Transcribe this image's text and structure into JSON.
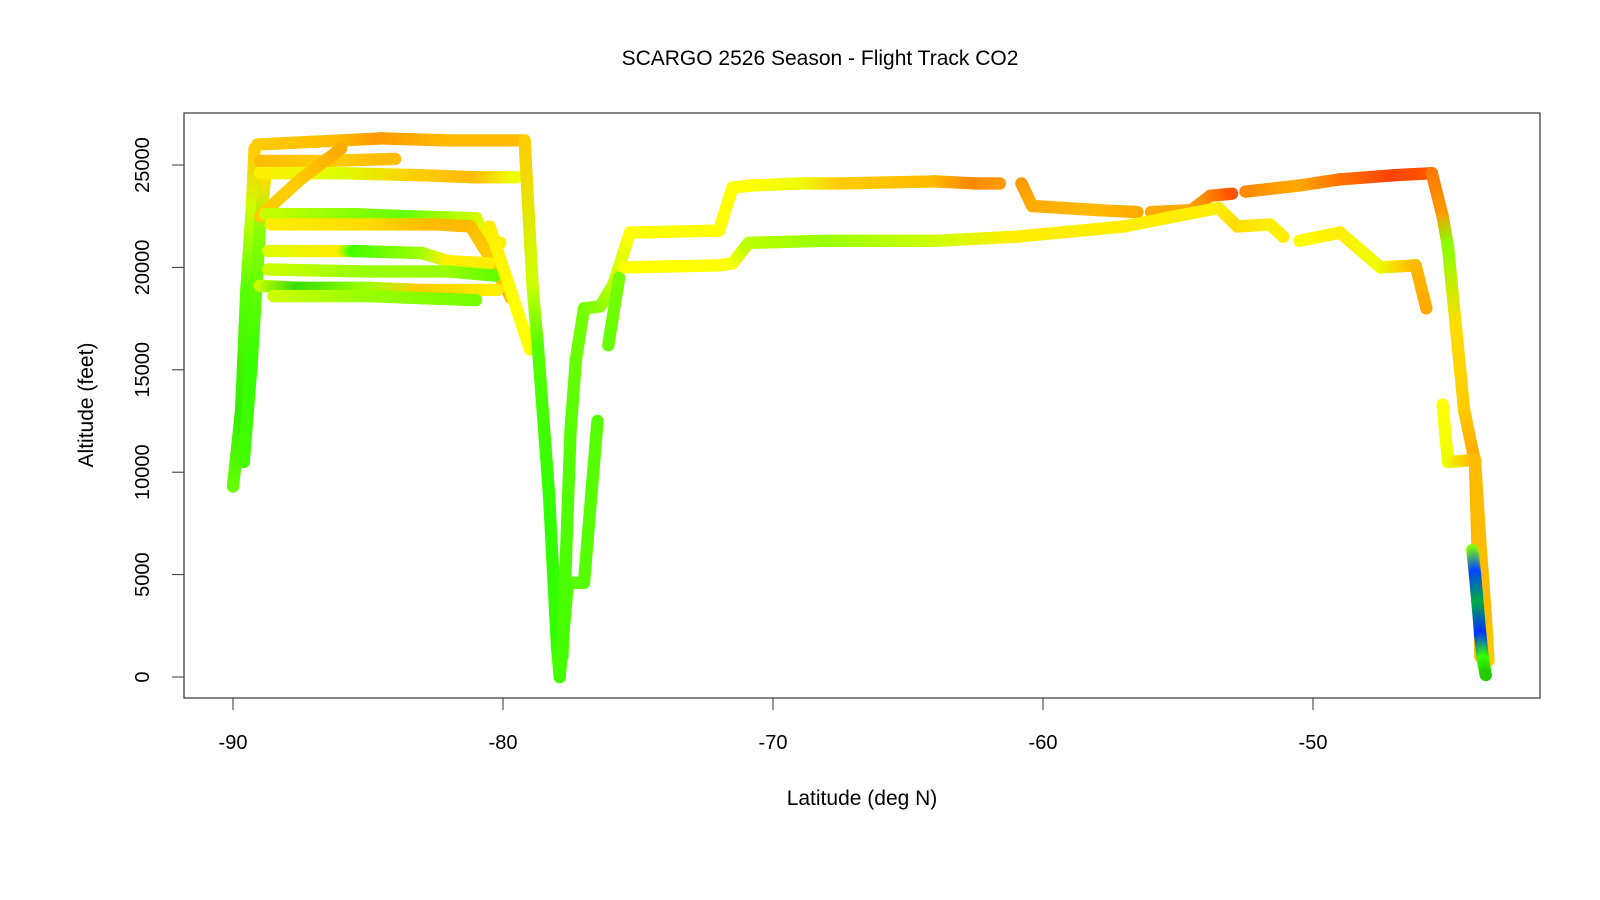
{
  "chart_data": {
    "type": "scatter",
    "title": "SCARGO 2526 Season - Flight Track CO2",
    "xlabel": "Latitude (deg N)",
    "ylabel": "Altitude (feet)",
    "xlim": [
      -91.9,
      -41.6
    ],
    "ylim": [
      -1000,
      27500
    ],
    "xticks": [
      -90,
      -80,
      -70,
      -60,
      -50
    ],
    "yticks": [
      0,
      5000,
      10000,
      15000,
      20000,
      25000
    ],
    "xtick_labels": [
      "-90",
      "-80",
      "-70",
      "-60",
      "-50"
    ],
    "ytick_labels": [
      "0",
      "5000",
      "10000",
      "15000",
      "20000",
      "25000"
    ],
    "grid": false,
    "legend": "none",
    "color_scale": {
      "low": "#0033ff",
      "mid_low": "#33ff00",
      "mid": "#ffff00",
      "mid_high": "#ffaa00",
      "high": "#ff2200"
    },
    "tracks": [
      [
        [
          -90.0,
          9300,
          "#66ff00"
        ],
        [
          -89.7,
          13000,
          "#33ee00"
        ],
        [
          -89.5,
          19000,
          "#55ff00"
        ],
        [
          -89.3,
          23000,
          "#ccff00"
        ],
        [
          -89.2,
          25800,
          "#ffcc00"
        ]
      ],
      [
        [
          -89.6,
          10500,
          "#44ff00"
        ],
        [
          -89.3,
          15500,
          "#33ff00"
        ],
        [
          -89.0,
          22000,
          "#88ff00"
        ],
        [
          -88.8,
          24500,
          "#ffdd00"
        ]
      ],
      [
        [
          -89.1,
          26000,
          "#ffcc00"
        ],
        [
          -86.0,
          26200,
          "#ffbb00"
        ],
        [
          -84.5,
          26300,
          "#ff9900"
        ],
        [
          -82.0,
          26200,
          "#ffbb00"
        ],
        [
          -79.2,
          26200,
          "#ffbb00"
        ]
      ],
      [
        [
          -89.0,
          25200,
          "#ffbb00"
        ],
        [
          -86.5,
          25200,
          "#ffcc00"
        ],
        [
          -84.0,
          25300,
          "#ffbb00"
        ]
      ],
      [
        [
          -89.0,
          24600,
          "#ffee00"
        ],
        [
          -86.0,
          24600,
          "#ddff00"
        ],
        [
          -83.0,
          24500,
          "#ffcc00"
        ],
        [
          -81.0,
          24400,
          "#ffbb00"
        ],
        [
          -79.5,
          24400,
          "#eeff00"
        ]
      ],
      [
        [
          -89.0,
          22500,
          "#ffcc00"
        ],
        [
          -87.5,
          24300,
          "#ffcc00"
        ],
        [
          -86.0,
          25800,
          "#ffaa00"
        ]
      ],
      [
        [
          -88.8,
          22600,
          "#ccff00"
        ],
        [
          -85.5,
          22600,
          "#88ff00"
        ],
        [
          -83.5,
          22500,
          "#66ff00"
        ],
        [
          -81.0,
          22400,
          "#ccff00"
        ],
        [
          -80.6,
          21300,
          "#ffee00"
        ],
        [
          -80.1,
          21200,
          "#ffee00"
        ]
      ],
      [
        [
          -88.6,
          22100,
          "#ffee00"
        ],
        [
          -85.0,
          22100,
          "#ffdd00"
        ],
        [
          -82.5,
          22100,
          "#ffbb00"
        ],
        [
          -81.2,
          22000,
          "#ffbb00"
        ],
        [
          -80.5,
          20500,
          "#ffcc00"
        ],
        [
          -79.7,
          18500,
          "#ffbb00"
        ]
      ],
      [
        [
          -88.7,
          20800,
          "#ddff00"
        ],
        [
          -86.0,
          20800,
          "#ffee00"
        ],
        [
          -85.5,
          20800,
          "#44ff00"
        ],
        [
          -83.0,
          20700,
          "#99ff00"
        ],
        [
          -82.0,
          20300,
          "#ffee00"
        ],
        [
          -80.5,
          20200,
          "#ffee00"
        ]
      ],
      [
        [
          -88.7,
          19900,
          "#ccff00"
        ],
        [
          -85.0,
          19800,
          "#99ff00"
        ],
        [
          -82.0,
          19800,
          "#99ff00"
        ],
        [
          -80.3,
          19600,
          "#66ff00"
        ]
      ],
      [
        [
          -89.0,
          19100,
          "#ccff00"
        ],
        [
          -87.5,
          19000,
          "#33dd00"
        ],
        [
          -85.0,
          19000,
          "#99ff00"
        ],
        [
          -83.0,
          18900,
          "#ffcc00"
        ],
        [
          -80.2,
          18900,
          "#ffee00"
        ]
      ],
      [
        [
          -88.5,
          18600,
          "#ccff00"
        ],
        [
          -85.0,
          18600,
          "#99ff00"
        ],
        [
          -83.0,
          18500,
          "#88ff00"
        ],
        [
          -81.0,
          18400,
          "#77ff00"
        ]
      ],
      [
        [
          -80.5,
          22000,
          "#ffee00"
        ],
        [
          -79.5,
          18000,
          "#ffff00"
        ],
        [
          -79.0,
          16000,
          "#ffff00"
        ]
      ],
      [
        [
          -79.2,
          26200,
          "#ffcc00"
        ],
        [
          -78.9,
          19000,
          "#ccff00"
        ],
        [
          -78.7,
          16000,
          "#55ff00"
        ],
        [
          -78.3,
          9000,
          "#33ff00"
        ],
        [
          -78.0,
          1500,
          "#33ff00"
        ],
        [
          -77.9,
          0,
          "#55ff00"
        ]
      ],
      [
        [
          -77.9,
          0,
          "#44ff00"
        ],
        [
          -77.6,
          4600,
          "#55ff00"
        ],
        [
          -77.0,
          4600,
          "#55ff00"
        ],
        [
          -76.5,
          12500,
          "#55ff00"
        ]
      ],
      [
        [
          -77.8,
          1000,
          "#44ff00"
        ],
        [
          -77.5,
          12000,
          "#55ff00"
        ],
        [
          -77.3,
          15500,
          "#66ff00"
        ],
        [
          -77.0,
          18000,
          "#77ff00"
        ],
        [
          -76.4,
          18100,
          "#88ff00"
        ],
        [
          -75.9,
          19200,
          "#bbff00"
        ],
        [
          -75.3,
          21700,
          "#ffff00"
        ]
      ],
      [
        [
          -76.1,
          16200,
          "#66ff00"
        ],
        [
          -75.7,
          19500,
          "#77ff00"
        ]
      ],
      [
        [
          -75.3,
          21700,
          "#ffff00"
        ],
        [
          -72.0,
          21800,
          "#ffff00"
        ],
        [
          -71.5,
          23900,
          "#ffff00"
        ],
        [
          -70.8,
          24000,
          "#ffff00"
        ],
        [
          -69.0,
          24100,
          "#eeff00"
        ],
        [
          -67.5,
          24100,
          "#ffcc00"
        ],
        [
          -64.0,
          24200,
          "#ffbb00"
        ],
        [
          -62.5,
          24100,
          "#ff8800"
        ],
        [
          -61.6,
          24100,
          "#ff9900"
        ]
      ],
      [
        [
          -60.8,
          24100,
          "#ff9900"
        ],
        [
          -60.4,
          23000,
          "#ffaa00"
        ],
        [
          -58.0,
          22800,
          "#ffbb00"
        ],
        [
          -56.5,
          22700,
          "#ffaa00"
        ]
      ],
      [
        [
          -56.0,
          22700,
          "#ffaa00"
        ],
        [
          -54.5,
          22800,
          "#ffaa00"
        ],
        [
          -53.8,
          23500,
          "#ff8800"
        ],
        [
          -53.0,
          23600,
          "#ff5500"
        ]
      ],
      [
        [
          -52.5,
          23700,
          "#ff8800"
        ],
        [
          -50.5,
          24000,
          "#ffaa00"
        ],
        [
          -49.0,
          24300,
          "#ff7700"
        ],
        [
          -47.0,
          24500,
          "#ff4400"
        ],
        [
          -45.6,
          24600,
          "#ff5500"
        ]
      ],
      [
        [
          -45.6,
          24600,
          "#ff7700"
        ],
        [
          -45.2,
          22500,
          "#ff9900"
        ],
        [
          -45.0,
          21000,
          "#88ff00"
        ],
        [
          -44.7,
          17000,
          "#ffdd00"
        ],
        [
          -44.4,
          13000,
          "#ffcc00"
        ],
        [
          -44.0,
          10500,
          "#ffaa00"
        ],
        [
          -43.9,
          6000,
          "#ffbb00"
        ],
        [
          -43.8,
          1000,
          "#ffbb00"
        ]
      ],
      [
        [
          -75.5,
          20000,
          "#ffff00"
        ],
        [
          -72.0,
          20100,
          "#ffff00"
        ],
        [
          -71.5,
          20200,
          "#ffff00"
        ],
        [
          -70.9,
          21200,
          "#bbff00"
        ],
        [
          -68.0,
          21300,
          "#99ff00"
        ],
        [
          -64.0,
          21300,
          "#ccff00"
        ],
        [
          -61.0,
          21500,
          "#ffee00"
        ],
        [
          -57.0,
          22000,
          "#ffee00"
        ],
        [
          -54.7,
          22600,
          "#ffee00"
        ],
        [
          -53.5,
          22900,
          "#ffee00"
        ],
        [
          -52.8,
          22000,
          "#ffdd00"
        ],
        [
          -51.6,
          22100,
          "#ffee00"
        ],
        [
          -51.1,
          21500,
          "#ffee00"
        ]
      ],
      [
        [
          -50.5,
          21300,
          "#ffff00"
        ],
        [
          -49.0,
          21700,
          "#ffee00"
        ],
        [
          -47.5,
          20000,
          "#eeff00"
        ],
        [
          -46.2,
          20100,
          "#ffbb00"
        ],
        [
          -45.8,
          18000,
          "#ffaa00"
        ]
      ],
      [
        [
          -45.2,
          13300,
          "#ffff00"
        ],
        [
          -45.0,
          10500,
          "#eeff00"
        ],
        [
          -44.0,
          10600,
          "#ffbb00"
        ],
        [
          -43.8,
          6500,
          "#ffbb00"
        ],
        [
          -43.6,
          3000,
          "#ffbb00"
        ],
        [
          -43.5,
          800,
          "#ffcc00"
        ]
      ],
      [
        [
          -44.1,
          6200,
          "#88ff00"
        ],
        [
          -44.0,
          5000,
          "#0044ff"
        ],
        [
          -43.9,
          3500,
          "#00aa44"
        ],
        [
          -43.8,
          2000,
          "#0033ff"
        ],
        [
          -43.7,
          800,
          "#33ff00"
        ],
        [
          -43.6,
          100,
          "#22cc00"
        ]
      ]
    ]
  }
}
